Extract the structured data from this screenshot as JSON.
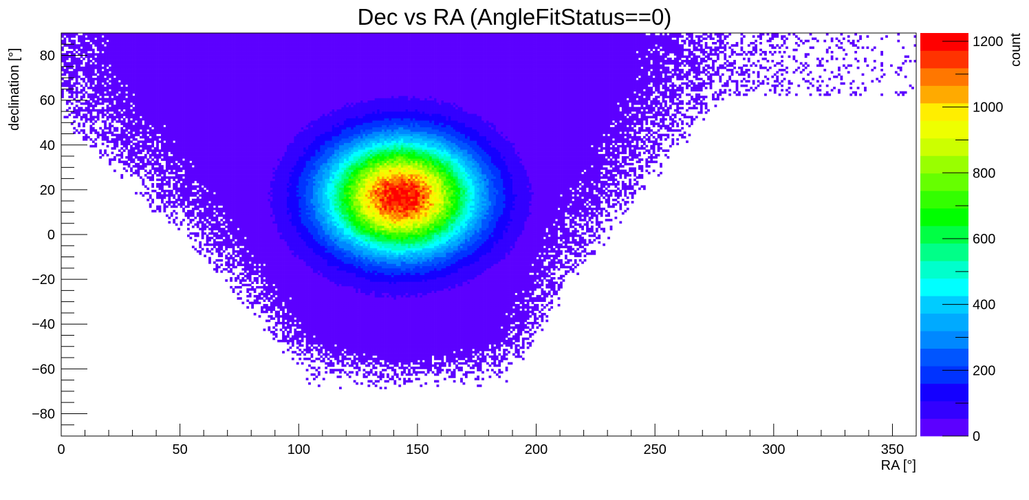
{
  "chart_data": {
    "type": "heatmap",
    "title": "Dec vs RA (AngleFitStatus==0)",
    "xlabel": "RA [°]",
    "ylabel": "declination [°]",
    "zlabel": "count",
    "xlim": [
      0,
      360
    ],
    "ylim": [
      -90,
      90
    ],
    "zlim": [
      0,
      1225
    ],
    "x_ticks": [
      0,
      50,
      100,
      150,
      200,
      250,
      300,
      350
    ],
    "y_ticks": [
      -80,
      -60,
      -40,
      -20,
      0,
      20,
      40,
      60,
      80
    ],
    "z_ticks": [
      0,
      200,
      400,
      600,
      800,
      1000,
      1200
    ],
    "tick_labels": {
      "x": [
        "0",
        "50",
        "100",
        "150",
        "200",
        "250",
        "300",
        "350"
      ],
      "y": [
        "−80",
        "−60",
        "−40",
        "−20",
        "0",
        "20",
        "40",
        "60",
        "80"
      ],
      "z": [
        "0",
        "200",
        "400",
        "600",
        "800",
        "1000",
        "1200"
      ]
    },
    "bins": {
      "x": 360,
      "y": 180
    },
    "peak": {
      "ra": 143,
      "dec": 17,
      "count": 1200
    },
    "distribution_notes": "Dense core centered near RA 143°, Dec 17°; sparse sky coverage band from roughly RA 50–230° over Dec −68° to 90°, with a sparse tail toward RA 360° near Dec 75–90°.",
    "grid": false,
    "colorbar": "right",
    "palette": [
      "#5c00ff",
      "#3300ff",
      "#1400ff",
      "#0033ff",
      "#0055ff",
      "#0088ff",
      "#00aaff",
      "#00ccff",
      "#00ffff",
      "#00ffcc",
      "#00ff88",
      "#00ff44",
      "#00ff00",
      "#33ff00",
      "#66ff00",
      "#99ff00",
      "#ccff00",
      "#eeff00",
      "#ffee00",
      "#ffaa00",
      "#ff7700",
      "#ff3300",
      "#ff0000"
    ]
  }
}
